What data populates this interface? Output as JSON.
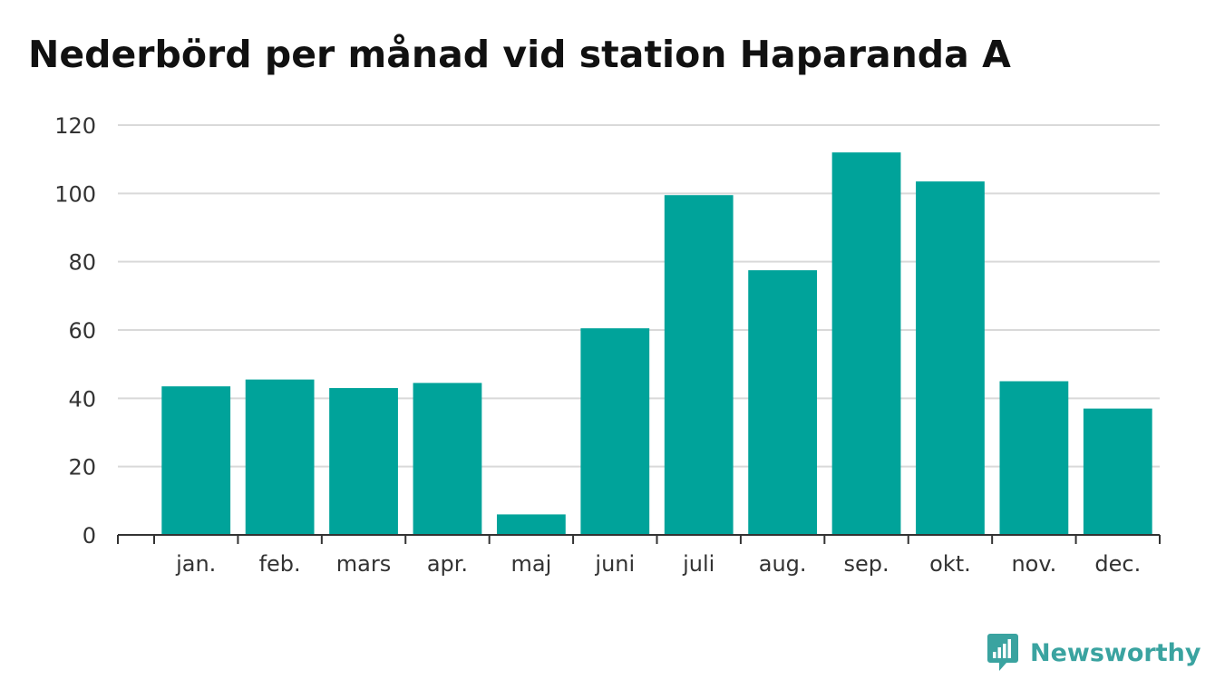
{
  "chart_data": {
    "type": "bar",
    "title": "Nederbörd per månad vid station Haparanda A",
    "xlabel": "",
    "ylabel": "",
    "categories": [
      "jan.",
      "feb.",
      "mars",
      "apr.",
      "maj",
      "juni",
      "juli",
      "aug.",
      "sep.",
      "okt.",
      "nov.",
      "dec."
    ],
    "values": [
      43.5,
      45.5,
      43,
      44.5,
      6,
      60.5,
      99.5,
      77.5,
      112,
      103.5,
      45,
      37
    ],
    "ylim": [
      0,
      120
    ],
    "yticks": [
      0,
      20,
      40,
      60,
      80,
      100,
      120
    ],
    "grid": true,
    "legend": "none",
    "colors": {
      "bar": "#00a39a",
      "grid": "#d9d9d9",
      "axis": "#333333"
    }
  },
  "brand": {
    "name": "Newsworthy",
    "icon": "bar-chart-speech-bubble-icon",
    "color": "#3aa3a0"
  }
}
